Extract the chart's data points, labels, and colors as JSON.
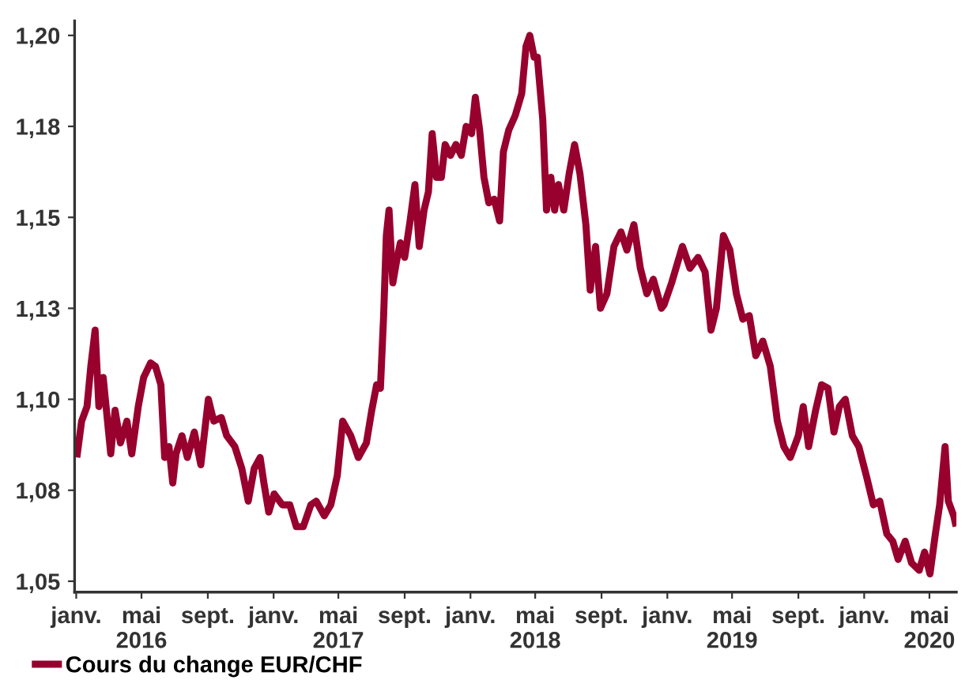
{
  "chart_data": {
    "type": "line",
    "x": [
      "2016-01-03",
      "2016-01-11",
      "2016-01-21",
      "2016-01-28",
      "2016-02-05",
      "2016-02-12",
      "2016-02-20",
      "2016-03-01",
      "2016-03-05",
      "2016-03-13",
      "2016-03-23",
      "2016-04-04",
      "2016-04-13",
      "2016-04-25",
      "2016-05-05",
      "2016-05-18",
      "2016-05-27",
      "2016-06-06",
      "2016-06-13",
      "2016-06-21",
      "2016-06-28",
      "2016-07-04",
      "2016-07-15",
      "2016-07-25",
      "2016-08-07",
      "2016-08-19",
      "2016-09-02",
      "2016-09-12",
      "2016-09-26",
      "2016-10-06",
      "2016-10-21",
      "2016-11-03",
      "2016-11-15",
      "2016-11-26",
      "2016-12-07",
      "2016-12-14",
      "2016-12-23",
      "2017-01-02",
      "2017-01-17",
      "2017-01-31",
      "2017-02-12",
      "2017-02-25",
      "2017-03-11",
      "2017-03-21",
      "2017-04-05",
      "2017-04-17",
      "2017-04-29",
      "2017-05-09",
      "2017-05-24",
      "2017-06-07",
      "2017-06-22",
      "2017-07-02",
      "2017-07-11",
      "2017-07-18",
      "2017-07-24",
      "2017-07-29",
      "2017-08-03",
      "2017-08-10",
      "2017-08-17",
      "2017-08-24",
      "2017-09-01",
      "2017-09-11",
      "2017-09-20",
      "2017-09-28",
      "2017-10-07",
      "2017-10-15",
      "2017-10-22",
      "2017-10-30",
      "2017-11-08",
      "2017-11-15",
      "2017-11-25",
      "2017-12-05",
      "2017-12-15",
      "2017-12-24",
      "2018-01-03",
      "2018-01-10",
      "2018-01-18",
      "2018-01-26",
      "2018-02-04",
      "2018-02-14",
      "2018-02-24",
      "2018-03-03",
      "2018-03-13",
      "2018-03-25",
      "2018-04-06",
      "2018-04-14",
      "2018-04-21",
      "2018-04-29",
      "2018-05-05",
      "2018-05-15",
      "2018-05-22",
      "2018-05-30",
      "2018-06-06",
      "2018-06-13",
      "2018-06-23",
      "2018-07-03",
      "2018-07-13",
      "2018-07-23",
      "2018-08-03",
      "2018-08-11",
      "2018-08-21",
      "2018-08-30",
      "2018-09-11",
      "2018-09-24",
      "2018-10-07",
      "2018-10-18",
      "2018-10-31",
      "2018-11-12",
      "2018-11-24",
      "2018-12-06",
      "2018-12-21",
      "2018-12-26",
      "2019-01-09",
      "2019-01-29",
      "2019-02-12",
      "2019-02-27",
      "2019-03-12",
      "2019-03-23",
      "2019-04-02",
      "2019-04-15",
      "2019-04-27",
      "2019-05-09",
      "2019-05-21",
      "2019-06-02",
      "2019-06-14",
      "2019-06-27",
      "2019-07-11",
      "2019-07-24",
      "2019-08-05",
      "2019-08-17",
      "2019-09-01",
      "2019-09-10",
      "2019-09-20",
      "2019-10-03",
      "2019-10-14",
      "2019-10-26",
      "2019-11-06",
      "2019-11-16",
      "2019-11-27",
      "2019-12-10",
      "2019-12-22",
      "2020-01-05",
      "2020-01-18",
      "2020-01-30",
      "2020-02-12",
      "2020-02-23",
      "2020-03-04",
      "2020-03-17",
      "2020-03-29",
      "2020-04-12",
      "2020-04-22",
      "2020-05-02",
      "2020-05-12",
      "2020-05-20",
      "2020-05-30",
      "2020-06-05",
      "2020-06-15",
      "2020-06-18"
    ],
    "series": [
      {
        "name": "Cours du change EUR/CHF",
        "color": "#98002e",
        "values": [
          1.085,
          1.094,
          1.098,
          1.109,
          1.119,
          1.098,
          1.106,
          1.091,
          1.085,
          1.097,
          1.088,
          1.094,
          1.085,
          1.098,
          1.106,
          1.11,
          1.109,
          1.104,
          1.084,
          1.087,
          1.077,
          1.085,
          1.09,
          1.084,
          1.091,
          1.082,
          1.1,
          1.094,
          1.095,
          1.09,
          1.087,
          1.081,
          1.072,
          1.081,
          1.084,
          1.077,
          1.069,
          1.074,
          1.071,
          1.071,
          1.065,
          1.065,
          1.071,
          1.072,
          1.068,
          1.071,
          1.079,
          1.094,
          1.09,
          1.084,
          1.088,
          1.097,
          1.104,
          1.103,
          1.123,
          1.145,
          1.152,
          1.132,
          1.138,
          1.143,
          1.139,
          1.149,
          1.159,
          1.142,
          1.152,
          1.157,
          1.173,
          1.161,
          1.161,
          1.17,
          1.167,
          1.17,
          1.167,
          1.175,
          1.173,
          1.183,
          1.174,
          1.161,
          1.154,
          1.155,
          1.149,
          1.168,
          1.174,
          1.178,
          1.184,
          1.197,
          1.2,
          1.194,
          1.194,
          1.177,
          1.152,
          1.161,
          1.152,
          1.159,
          1.152,
          1.162,
          1.17,
          1.162,
          1.148,
          1.13,
          1.142,
          1.125,
          1.129,
          1.142,
          1.146,
          1.141,
          1.148,
          1.136,
          1.129,
          1.133,
          1.125,
          1.126,
          1.132,
          1.142,
          1.136,
          1.139,
          1.135,
          1.119,
          1.125,
          1.145,
          1.141,
          1.129,
          1.122,
          1.123,
          1.112,
          1.116,
          1.109,
          1.094,
          1.087,
          1.084,
          1.09,
          1.098,
          1.087,
          1.097,
          1.104,
          1.103,
          1.091,
          1.098,
          1.1,
          1.09,
          1.087,
          1.079,
          1.071,
          1.072,
          1.063,
          1.061,
          1.056,
          1.061,
          1.055,
          1.053,
          1.058,
          1.052,
          1.063,
          1.071,
          1.087,
          1.072,
          1.068,
          1.066
        ]
      }
    ],
    "xlim": [
      "2015-12-29",
      "2020-06-20"
    ],
    "xticks": [
      {
        "value": "2016-01-01",
        "label": "janv."
      },
      {
        "value": "2016-05-01",
        "label": "mai\n2016"
      },
      {
        "value": "2016-09-01",
        "label": "sept."
      },
      {
        "value": "2017-01-01",
        "label": "janv."
      },
      {
        "value": "2017-05-01",
        "label": "mai\n2017"
      },
      {
        "value": "2017-09-01",
        "label": "sept."
      },
      {
        "value": "2018-01-01",
        "label": "janv."
      },
      {
        "value": "2018-05-01",
        "label": "mai\n2018"
      },
      {
        "value": "2018-09-01",
        "label": "sept."
      },
      {
        "value": "2019-01-01",
        "label": "janv."
      },
      {
        "value": "2019-05-01",
        "label": "mai\n2019"
      },
      {
        "value": "2019-09-01",
        "label": "sept."
      },
      {
        "value": "2020-01-01",
        "label": "janv."
      },
      {
        "value": "2020-05-01",
        "label": "mai\n2020"
      }
    ],
    "ylim": [
      1.047,
      1.204
    ],
    "yticks": [
      {
        "value": 1.05,
        "label": "1,05"
      },
      {
        "value": 1.075,
        "label": "1,08"
      },
      {
        "value": 1.1,
        "label": "1,10"
      },
      {
        "value": 1.125,
        "label": "1,13"
      },
      {
        "value": 1.15,
        "label": "1,15"
      },
      {
        "value": 1.175,
        "label": "1,18"
      },
      {
        "value": 1.2,
        "label": "1,20"
      }
    ],
    "grid": false,
    "legend": "bottom left",
    "marker": "none",
    "line_style": "solid"
  }
}
